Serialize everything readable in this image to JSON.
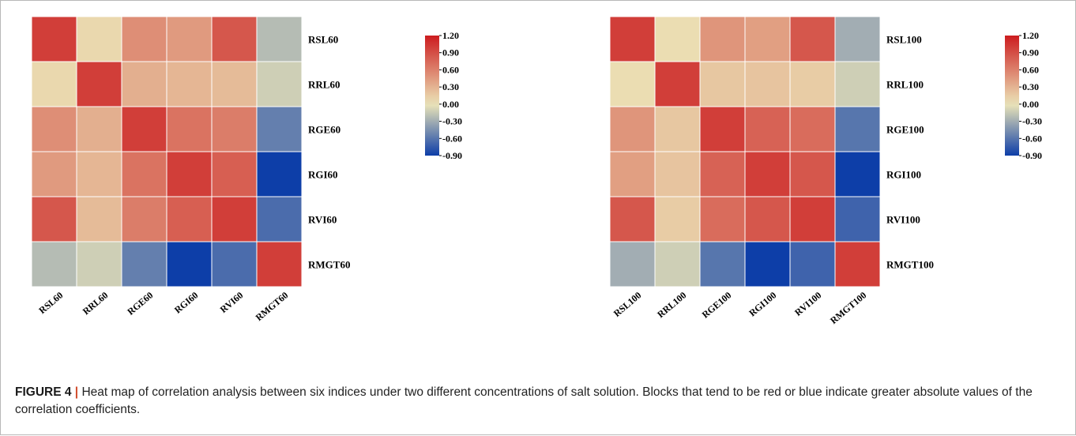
{
  "chart_data": [
    {
      "type": "heatmap",
      "rows": [
        "RSL60",
        "RRL60",
        "RGE60",
        "RGI60",
        "RVI60",
        "RMGT60"
      ],
      "columns": [
        "RSL60",
        "RRL60",
        "RGE60",
        "RGI60",
        "RVI60",
        "RMGT60"
      ],
      "values": [
        [
          1.0,
          0.08,
          0.52,
          0.45,
          0.85,
          -0.22
        ],
        [
          0.08,
          1.0,
          0.32,
          0.28,
          0.25,
          -0.12
        ],
        [
          0.52,
          0.32,
          1.0,
          0.68,
          0.62,
          -0.55
        ],
        [
          0.45,
          0.28,
          0.68,
          1.0,
          0.8,
          -0.95
        ],
        [
          0.85,
          0.25,
          0.62,
          0.8,
          1.0,
          -0.65
        ],
        [
          -0.22,
          -0.12,
          -0.55,
          -0.95,
          -0.65,
          1.0
        ]
      ],
      "colorbar": {
        "min": -0.9,
        "max": 1.2,
        "ticks": [
          "1.20",
          "0.90",
          "0.60",
          "0.30",
          "0.00",
          "-0.30",
          "-0.60",
          "-0.90"
        ]
      }
    },
    {
      "type": "heatmap",
      "rows": [
        "RSL100",
        "RRL100",
        "RGE100",
        "RGI100",
        "RVI100",
        "RMGT100"
      ],
      "columns": [
        "RSL100",
        "RRL100",
        "RGE100",
        "RGI100",
        "RVI100",
        "RMGT100"
      ],
      "values": [
        [
          1.0,
          0.05,
          0.48,
          0.42,
          0.85,
          -0.3
        ],
        [
          0.05,
          1.0,
          0.18,
          0.2,
          0.15,
          -0.12
        ],
        [
          0.48,
          0.18,
          1.0,
          0.78,
          0.72,
          -0.6
        ],
        [
          0.42,
          0.2,
          0.78,
          1.0,
          0.85,
          -0.95
        ],
        [
          0.85,
          0.15,
          0.72,
          0.85,
          1.0,
          -0.7
        ],
        [
          -0.3,
          -0.12,
          -0.6,
          -0.95,
          -0.7,
          1.0
        ]
      ],
      "colorbar": {
        "min": -0.9,
        "max": 1.2,
        "ticks": [
          "1.20",
          "0.90",
          "0.60",
          "0.30",
          "0.00",
          "-0.30",
          "-0.60",
          "-0.90"
        ]
      }
    }
  ],
  "colors": {
    "high": "#cc1c1f",
    "mid": "#ece5b8",
    "low": "#0d3ea8"
  },
  "caption": {
    "label": "FIGURE 4",
    "separator": "|",
    "text": "Heat map of correlation analysis between six indices under two different concentrations of salt solution. Blocks that tend to be red or blue indicate greater absolute values of the correlation coefficients."
  }
}
